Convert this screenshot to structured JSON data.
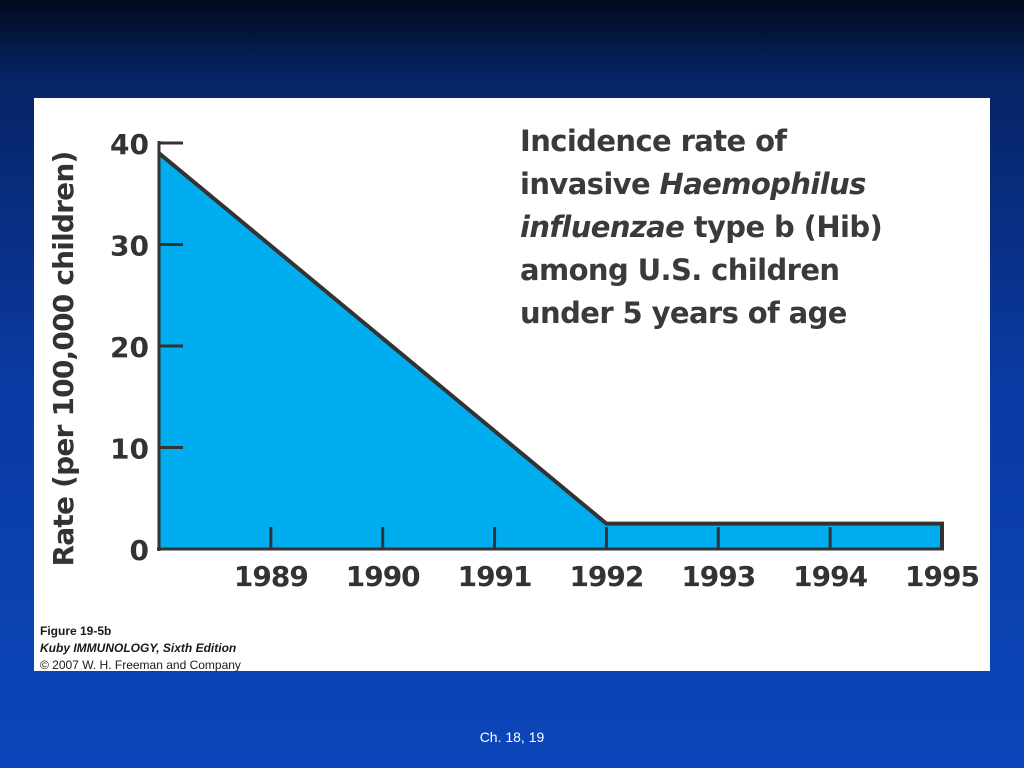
{
  "chart_data": {
    "type": "area",
    "title_lines": [
      "Incidence rate of",
      "invasive ",
      "Haemophilus",
      "influenzae",
      " type b (Hib)",
      "among U.S. children",
      "under 5 years of age"
    ],
    "ylabel": "Rate (per 100,000 children)",
    "xlabel": "",
    "x_ticks": [
      "1989",
      "1990",
      "1991",
      "1992",
      "1993",
      "1994",
      "1995"
    ],
    "y_ticks": [
      "0",
      "10",
      "20",
      "30",
      "40"
    ],
    "ylim": [
      0,
      40
    ],
    "xlim": [
      1988,
      1995
    ],
    "points": [
      {
        "x": 1988,
        "y": 39
      },
      {
        "x": 1992,
        "y": 2.5
      },
      {
        "x": 1995,
        "y": 2.5
      }
    ],
    "fill_color": "#00aeef",
    "line_color": "#333333",
    "grid": false,
    "legend": "none"
  },
  "caption": {
    "figure": "Figure 19-5b",
    "edition": "Kuby IMMUNOLOGY, Sixth Edition",
    "copyright": "© 2007 W. H. Freeman and Company"
  },
  "footer": "Ch. 18, 19"
}
